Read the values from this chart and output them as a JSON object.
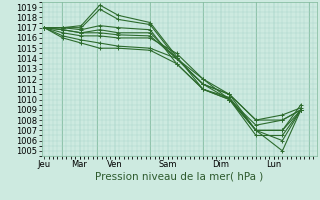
{
  "background_color": "#cdeae0",
  "grid_color": "#a8d5c8",
  "line_color": "#2d6b2d",
  "xlabel_text": "Pression niveau de la mer( hPa )",
  "x_labels": [
    "Jeu",
    "Mar",
    "Ven",
    "Sam",
    "Dim",
    "Lun"
  ],
  "x_tick_positions": [
    0,
    0.667,
    1.333,
    2.333,
    3.333,
    4.333
  ],
  "x_vline_positions": [
    0.333,
    1.0,
    2.0,
    3.0,
    4.0,
    5.0
  ],
  "ylim": [
    1004.5,
    1019.5
  ],
  "xlim": [
    -0.05,
    5.15
  ],
  "yticks": [
    1005,
    1006,
    1007,
    1008,
    1009,
    1010,
    1011,
    1012,
    1013,
    1014,
    1015,
    1016,
    1017,
    1018,
    1019
  ],
  "lines": [
    {
      "x": [
        0.0,
        0.35,
        0.7,
        1.05,
        1.4,
        2.0,
        2.5,
        3.0,
        3.5,
        4.0,
        4.5,
        4.85
      ],
      "y": [
        1017.0,
        1017.0,
        1017.2,
        1019.2,
        1018.2,
        1017.5,
        1014.2,
        1011.0,
        1010.2,
        1007.0,
        1005.0,
        1009.0
      ]
    },
    {
      "x": [
        0.0,
        0.35,
        0.7,
        1.05,
        1.4,
        2.0,
        2.5,
        3.0,
        3.5,
        4.0,
        4.5,
        4.85
      ],
      "y": [
        1017.0,
        1017.0,
        1017.0,
        1018.8,
        1017.8,
        1017.3,
        1014.0,
        1011.5,
        1010.0,
        1007.0,
        1006.0,
        1009.0
      ]
    },
    {
      "x": [
        0.0,
        0.35,
        0.7,
        1.05,
        1.4,
        2.0,
        2.5,
        3.0,
        3.5,
        4.0,
        4.5,
        4.85
      ],
      "y": [
        1017.0,
        1017.0,
        1016.8,
        1017.2,
        1017.0,
        1016.8,
        1013.5,
        1011.0,
        1010.0,
        1006.5,
        1006.5,
        1009.0
      ]
    },
    {
      "x": [
        0.0,
        0.35,
        0.7,
        1.05,
        1.4,
        2.0,
        2.5,
        3.0,
        3.5,
        4.0,
        4.5,
        4.85
      ],
      "y": [
        1017.0,
        1016.8,
        1016.5,
        1016.8,
        1016.5,
        1016.5,
        1014.0,
        1012.0,
        1010.0,
        1007.0,
        1007.0,
        1009.5
      ]
    },
    {
      "x": [
        0.0,
        0.35,
        0.7,
        1.05,
        1.4,
        2.0,
        2.5,
        3.0,
        3.5,
        4.0,
        4.5,
        4.85
      ],
      "y": [
        1017.0,
        1016.5,
        1016.2,
        1016.2,
        1016.0,
        1016.0,
        1014.5,
        1012.0,
        1010.5,
        1007.0,
        1007.0,
        1009.0
      ]
    },
    {
      "x": [
        0.0,
        0.35,
        0.7,
        1.05,
        1.4,
        2.0,
        2.5,
        3.0,
        3.5,
        4.0,
        4.5,
        4.85
      ],
      "y": [
        1017.0,
        1016.2,
        1015.8,
        1015.5,
        1015.2,
        1015.0,
        1014.0,
        1011.5,
        1010.5,
        1008.0,
        1008.0,
        1009.0
      ]
    },
    {
      "x": [
        0.0,
        0.35,
        0.7,
        1.05,
        1.4,
        2.0,
        2.5,
        3.0,
        3.5,
        4.0,
        4.5,
        4.85
      ],
      "y": [
        1017.0,
        1016.0,
        1015.5,
        1015.0,
        1015.0,
        1014.8,
        1013.5,
        1011.0,
        1010.0,
        1007.5,
        1008.0,
        1009.0
      ]
    },
    {
      "x": [
        0.0,
        0.35,
        0.7,
        1.05,
        1.4,
        2.0,
        2.5,
        3.0,
        3.5,
        4.0,
        4.5,
        4.85
      ],
      "y": [
        1017.0,
        1016.8,
        1016.5,
        1016.5,
        1016.3,
        1016.2,
        1014.0,
        1011.5,
        1010.5,
        1008.0,
        1008.5,
        1009.2
      ]
    }
  ],
  "marker_style": "+",
  "marker_size": 3,
  "linewidth": 0.8,
  "fontsize_ticks": 6,
  "fontsize_xlabel": 7.5
}
